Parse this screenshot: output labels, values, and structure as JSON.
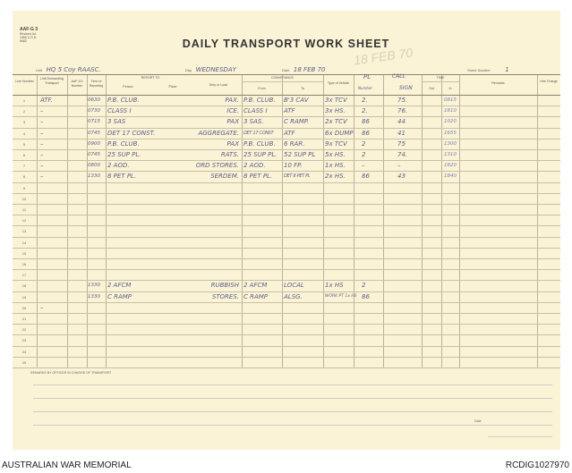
{
  "form": {
    "code": "AAF-G 3",
    "small_print": "Revised Jul. 1966 C.D.D. 9682",
    "title": "DAILY TRANSPORT WORK SHEET",
    "unit_label": "Unit",
    "unit": "HQ 5 Coy RAASC.",
    "day_label": "Day",
    "day": "WEDNESDAY",
    "date_label": "Date",
    "date": "18 FEB 70",
    "sheet_label": "Sheet Number",
    "sheet": "1",
    "stamp": "18 FEB 70"
  },
  "columns": {
    "line": "Line Number",
    "unit": "Unit Demanding Transport",
    "aab": "AAF-G3 Number",
    "time": "Time of Reporting",
    "report_to": "REPORT TO",
    "person": "Person",
    "place": "Place",
    "duty": "Duty or Load",
    "conveyance": "CONVEYANCE",
    "from": "From",
    "to": "To",
    "type": "Type of Vehicle",
    "pl": "PL",
    "pl_sub": "Number",
    "call": "CALL",
    "call_sub": "SIGN",
    "time_group": "TIME",
    "out": "Out",
    "in": "In",
    "remarks": "Remarks",
    "hire": "Hire Charge"
  },
  "rows": [
    {
      "n": "1",
      "unit": "ATF.",
      "time": "0630",
      "report": "P.B. CLUB.",
      "duty": "PAX.",
      "from": "P.B. CLUB.",
      "to": "B'3 CAV",
      "type": "3x TCV",
      "pl": "2.",
      "call": "75.",
      "in": "0815"
    },
    {
      "n": "2",
      "unit": "–",
      "time": "0730",
      "report": "CLASS I",
      "duty": "ICE.",
      "from": "CLASS I",
      "to": "ATF",
      "type": "3x HS.",
      "pl": "2.",
      "call": "76.",
      "in": "1810"
    },
    {
      "n": "3",
      "unit": "–",
      "time": "0715",
      "report": "3 SAS",
      "duty": "PAX",
      "from": "3 SAS.",
      "to": "C RAMP.",
      "type": "2x TCV",
      "pl": "86",
      "call": "44",
      "in": "1020"
    },
    {
      "n": "4",
      "unit": "–",
      "time": "0745",
      "report": "DET 17 CONST.",
      "duty": "AGGREGATE.",
      "from": "DET 17 CONST",
      "to": "ATF",
      "type": "6x DUMP",
      "pl": "86",
      "call": "41",
      "in": "1655"
    },
    {
      "n": "5",
      "unit": "–",
      "time": "0900",
      "report": "P.B. CLUB.",
      "duty": "PAX",
      "from": "P.B. CLUB.",
      "to": "6 RAR.",
      "type": "9x TCV",
      "pl": "2",
      "call": "75",
      "in": "1300"
    },
    {
      "n": "6",
      "unit": "–",
      "time": "0745",
      "report": "25 SUP PL.",
      "duty": "RATS.",
      "from": "25 SUP PL.",
      "to": "52 SUP PL",
      "type": "5x HS.",
      "pl": "2",
      "call": "74.",
      "in": "1310"
    },
    {
      "n": "7",
      "unit": "–",
      "time": "0800",
      "report": "2 AOD.",
      "duty": "ORD STORES.",
      "from": "2 AOD.",
      "to": "10 FP.",
      "type": "1x HS.",
      "pl": "–",
      "call": "–",
      "in": "1820"
    },
    {
      "n": "8",
      "unit": "–",
      "time": "1330",
      "report": "8 PET PL.",
      "duty": "SERDEM.",
      "from": "8 PET PL.",
      "to": "DET 8 PET PL",
      "type": "2x HS.",
      "pl": "86",
      "call": "43",
      "in": "1840"
    },
    {
      "n": "9"
    },
    {
      "n": "10"
    },
    {
      "n": "11"
    },
    {
      "n": "12"
    },
    {
      "n": "13"
    },
    {
      "n": "14"
    },
    {
      "n": "15"
    },
    {
      "n": "16"
    },
    {
      "n": "17"
    },
    {
      "n": "18",
      "time": "1330",
      "report": "2 AFCM",
      "duty": "RUBBISH",
      "from": "2 AFCM",
      "to": "LOCAL",
      "type": "1x HS",
      "pl": "2"
    },
    {
      "n": "19",
      "time": "1330",
      "report": "C RAMP",
      "duty": "STORES.",
      "from": "C RAMP",
      "to": "ALSG.",
      "type": "WORK PT 1x HS",
      "pl": "86"
    },
    {
      "n": "20",
      "unit": "–"
    },
    {
      "n": "21"
    },
    {
      "n": "22"
    },
    {
      "n": "23"
    },
    {
      "n": "24"
    },
    {
      "n": "25"
    }
  ],
  "footer": {
    "remarks_label": "REMARKS BY OFFICER IN CHARGE OF TRANSPORT",
    "date_label": "Date"
  },
  "caption": {
    "left": "AUSTRALIAN WAR MEMORIAL",
    "right": "RCDIG1027970"
  }
}
